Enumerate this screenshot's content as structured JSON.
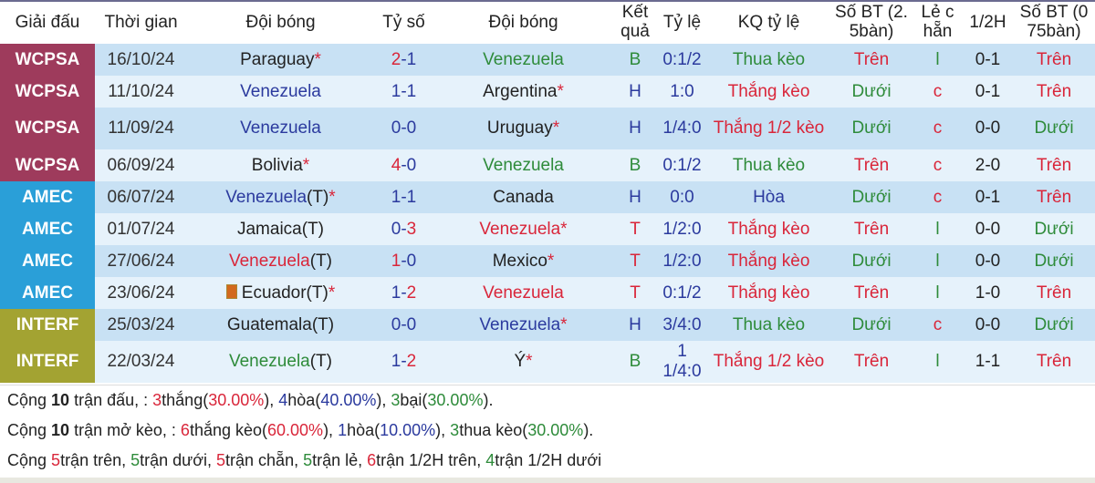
{
  "colors": {
    "WCPSA": "#9e3b5c",
    "AMEC": "#2a9fd8",
    "INTERF": "#a3a332",
    "red": "#d9263a",
    "green": "#2e8b3a",
    "blue": "#2b3a9e"
  },
  "headers": [
    "Giải đấu",
    "Thời gian",
    "Đội bóng",
    "Tỷ số",
    "Đội bóng",
    "Kết quả",
    "Tỷ lệ",
    "KQ tỷ lệ",
    "Số BT (2. 5bàn)",
    "Lẻ c hẵn",
    "1/2H",
    "Số BT (0 75bàn)"
  ],
  "rows": [
    {
      "league": "WCPSA",
      "date": "16/10/24",
      "home": {
        "name": "Paraguay",
        "suffix": "",
        "star": "*",
        "color": "dark"
      },
      "score": {
        "h": "2",
        "a": "1",
        "hc": "red",
        "ac": "blue"
      },
      "away": {
        "name": "Venezuela",
        "suffix": "",
        "star": "",
        "color": "green"
      },
      "result": {
        "v": "B",
        "c": "green"
      },
      "odds": "0:1/2",
      "kq": {
        "v": "Thua kèo",
        "c": "green"
      },
      "bt25": {
        "v": "Trên",
        "c": "red"
      },
      "oe": {
        "v": "l",
        "c": "green"
      },
      "half": "0-1",
      "bt075": {
        "v": "Trên",
        "c": "red"
      }
    },
    {
      "league": "WCPSA",
      "date": "11/10/24",
      "home": {
        "name": "Venezuela",
        "suffix": "",
        "star": "",
        "color": "blue"
      },
      "score": {
        "h": "1",
        "a": "1",
        "hc": "blue",
        "ac": "blue"
      },
      "away": {
        "name": "Argentina",
        "suffix": "",
        "star": "*",
        "color": "dark"
      },
      "result": {
        "v": "H",
        "c": "blue"
      },
      "odds": "1:0",
      "kq": {
        "v": "Thắng kèo",
        "c": "red"
      },
      "bt25": {
        "v": "Dưới",
        "c": "green"
      },
      "oe": {
        "v": "c",
        "c": "red"
      },
      "half": "0-1",
      "bt075": {
        "v": "Trên",
        "c": "red"
      }
    },
    {
      "league": "WCPSA",
      "date": "11/09/24",
      "home": {
        "name": "Venezuela",
        "suffix": "",
        "star": "",
        "color": "blue"
      },
      "score": {
        "h": "0",
        "a": "0",
        "hc": "blue",
        "ac": "blue"
      },
      "away": {
        "name": "Uruguay",
        "suffix": "",
        "star": "*",
        "color": "dark"
      },
      "result": {
        "v": "H",
        "c": "blue"
      },
      "odds": "1/4:0",
      "kq": {
        "v": "Thắng 1/2 kèo",
        "c": "red"
      },
      "bt25": {
        "v": "Dưới",
        "c": "green"
      },
      "oe": {
        "v": "c",
        "c": "red"
      },
      "half": "0-0",
      "bt075": {
        "v": "Dưới",
        "c": "green"
      },
      "tall": true
    },
    {
      "league": "WCPSA",
      "date": "06/09/24",
      "home": {
        "name": "Bolivia",
        "suffix": "",
        "star": "*",
        "color": "dark"
      },
      "score": {
        "h": "4",
        "a": "0",
        "hc": "red",
        "ac": "blue"
      },
      "away": {
        "name": "Venezuela",
        "suffix": "",
        "star": "",
        "color": "green"
      },
      "result": {
        "v": "B",
        "c": "green"
      },
      "odds": "0:1/2",
      "kq": {
        "v": "Thua kèo",
        "c": "green"
      },
      "bt25": {
        "v": "Trên",
        "c": "red"
      },
      "oe": {
        "v": "c",
        "c": "red"
      },
      "half": "2-0",
      "bt075": {
        "v": "Trên",
        "c": "red"
      }
    },
    {
      "league": "AMEC",
      "date": "06/07/24",
      "home": {
        "name": "Venezuela",
        "suffix": "(T)",
        "star": "*",
        "color": "blue"
      },
      "score": {
        "h": "1",
        "a": "1",
        "hc": "blue",
        "ac": "blue"
      },
      "away": {
        "name": "Canada",
        "suffix": "",
        "star": "",
        "color": "dark"
      },
      "result": {
        "v": "H",
        "c": "blue"
      },
      "odds": "0:0",
      "kq": {
        "v": "Hòa",
        "c": "blue"
      },
      "bt25": {
        "v": "Dưới",
        "c": "green"
      },
      "oe": {
        "v": "c",
        "c": "red"
      },
      "half": "0-1",
      "bt075": {
        "v": "Trên",
        "c": "red"
      }
    },
    {
      "league": "AMEC",
      "date": "01/07/24",
      "home": {
        "name": "Jamaica",
        "suffix": "(T)",
        "star": "",
        "color": "dark"
      },
      "score": {
        "h": "0",
        "a": "3",
        "hc": "blue",
        "ac": "red"
      },
      "away": {
        "name": "Venezuela",
        "suffix": "",
        "star": "*",
        "color": "red"
      },
      "result": {
        "v": "T",
        "c": "red"
      },
      "odds": "1/2:0",
      "kq": {
        "v": "Thắng kèo",
        "c": "red"
      },
      "bt25": {
        "v": "Trên",
        "c": "red"
      },
      "oe": {
        "v": "l",
        "c": "green"
      },
      "half": "0-0",
      "bt075": {
        "v": "Dưới",
        "c": "green"
      }
    },
    {
      "league": "AMEC",
      "date": "27/06/24",
      "home": {
        "name": "Venezuela",
        "suffix": "(T)",
        "star": "",
        "color": "red"
      },
      "score": {
        "h": "1",
        "a": "0",
        "hc": "red",
        "ac": "blue"
      },
      "away": {
        "name": "Mexico",
        "suffix": "",
        "star": "*",
        "color": "dark"
      },
      "result": {
        "v": "T",
        "c": "red"
      },
      "odds": "1/2:0",
      "kq": {
        "v": "Thắng kèo",
        "c": "red"
      },
      "bt25": {
        "v": "Dưới",
        "c": "green"
      },
      "oe": {
        "v": "l",
        "c": "green"
      },
      "half": "0-0",
      "bt075": {
        "v": "Dưới",
        "c": "green"
      }
    },
    {
      "league": "AMEC",
      "date": "23/06/24",
      "home": {
        "name": "Ecuador",
        "suffix": "(T)",
        "star": "*",
        "color": "dark",
        "flag": true
      },
      "score": {
        "h": "1",
        "a": "2",
        "hc": "blue",
        "ac": "red"
      },
      "away": {
        "name": "Venezuela",
        "suffix": "",
        "star": "",
        "color": "red"
      },
      "result": {
        "v": "T",
        "c": "red"
      },
      "odds": "0:1/2",
      "kq": {
        "v": "Thắng kèo",
        "c": "red"
      },
      "bt25": {
        "v": "Trên",
        "c": "red"
      },
      "oe": {
        "v": "l",
        "c": "green"
      },
      "half": "1-0",
      "bt075": {
        "v": "Trên",
        "c": "red"
      }
    },
    {
      "league": "INTERF",
      "date": "25/03/24",
      "home": {
        "name": "Guatemala",
        "suffix": "(T)",
        "star": "",
        "color": "dark"
      },
      "score": {
        "h": "0",
        "a": "0",
        "hc": "blue",
        "ac": "blue"
      },
      "away": {
        "name": "Venezuela",
        "suffix": "",
        "star": "*",
        "color": "blue"
      },
      "result": {
        "v": "H",
        "c": "blue"
      },
      "odds": "3/4:0",
      "kq": {
        "v": "Thua kèo",
        "c": "green"
      },
      "bt25": {
        "v": "Dưới",
        "c": "green"
      },
      "oe": {
        "v": "c",
        "c": "red"
      },
      "half": "0-0",
      "bt075": {
        "v": "Dưới",
        "c": "green"
      }
    },
    {
      "league": "INTERF",
      "date": "22/03/24",
      "home": {
        "name": "Venezuela",
        "suffix": "(T)",
        "star": "",
        "color": "green"
      },
      "score": {
        "h": "1",
        "a": "2",
        "hc": "blue",
        "ac": "red"
      },
      "away": {
        "name": "Ý",
        "suffix": "",
        "star": "*",
        "color": "dark"
      },
      "result": {
        "v": "B",
        "c": "green"
      },
      "odds": "1 1/4:0",
      "kq": {
        "v": "Thắng 1/2 kèo",
        "c": "red"
      },
      "bt25": {
        "v": "Trên",
        "c": "red"
      },
      "oe": {
        "v": "l",
        "c": "green"
      },
      "half": "1-1",
      "bt075": {
        "v": "Trên",
        "c": "red"
      },
      "tall": true
    }
  ],
  "summary": [
    [
      [
        "Cộng ",
        "dark",
        0
      ],
      [
        "10",
        "dark",
        1
      ],
      [
        " trận đấu, : ",
        "dark",
        0
      ],
      [
        "3",
        "red",
        0
      ],
      [
        "thắng(",
        "dark",
        0
      ],
      [
        "30.00%",
        "red",
        0
      ],
      [
        "), ",
        "dark",
        0
      ],
      [
        "4",
        "blue",
        0
      ],
      [
        "hòa(",
        "dark",
        0
      ],
      [
        "40.00%",
        "blue",
        0
      ],
      [
        "), ",
        "dark",
        0
      ],
      [
        "3",
        "green",
        0
      ],
      [
        "bại(",
        "dark",
        0
      ],
      [
        "30.00%",
        "green",
        0
      ],
      [
        ").",
        "dark",
        0
      ]
    ],
    [
      [
        "Cộng ",
        "dark",
        0
      ],
      [
        "10",
        "dark",
        1
      ],
      [
        " trận mở kèo, : ",
        "dark",
        0
      ],
      [
        "6",
        "red",
        0
      ],
      [
        "thắng kèo(",
        "dark",
        0
      ],
      [
        "60.00%",
        "red",
        0
      ],
      [
        "), ",
        "dark",
        0
      ],
      [
        "1",
        "blue",
        0
      ],
      [
        "hòa(",
        "dark",
        0
      ],
      [
        "10.00%",
        "blue",
        0
      ],
      [
        "), ",
        "dark",
        0
      ],
      [
        "3",
        "green",
        0
      ],
      [
        "thua kèo(",
        "dark",
        0
      ],
      [
        "30.00%",
        "green",
        0
      ],
      [
        ").",
        "dark",
        0
      ]
    ],
    [
      [
        "Cộng ",
        "dark",
        0
      ],
      [
        "5",
        "red",
        0
      ],
      [
        "trận trên, ",
        "dark",
        0
      ],
      [
        "5",
        "green",
        0
      ],
      [
        "trận dưới, ",
        "dark",
        0
      ],
      [
        "5",
        "red",
        0
      ],
      [
        "trận chẵn, ",
        "dark",
        0
      ],
      [
        "5",
        "green",
        0
      ],
      [
        "trận lẻ, ",
        "dark",
        0
      ],
      [
        "6",
        "red",
        0
      ],
      [
        "trận 1/2H trên, ",
        "dark",
        0
      ],
      [
        "4",
        "green",
        0
      ],
      [
        "trận 1/2H dưới",
        "dark",
        0
      ]
    ]
  ]
}
